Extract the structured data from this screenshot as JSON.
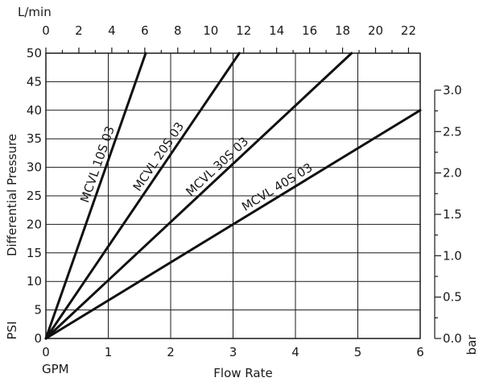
{
  "chart_data": {
    "type": "line",
    "grid": true,
    "bottom_axis": {
      "unit_label": "GPM",
      "title": "Flow Rate",
      "range": [
        0,
        6
      ],
      "ticks": [
        0,
        1,
        2,
        3,
        4,
        5,
        6
      ]
    },
    "top_axis": {
      "unit_label": "L/min",
      "range": [
        0,
        22.71
      ],
      "ticks": [
        0,
        2,
        4,
        6,
        8,
        10,
        12,
        14,
        16,
        18,
        20,
        22
      ]
    },
    "left_axis": {
      "title": "Differential Pressure",
      "unit_label": "PSI",
      "range": [
        0,
        50
      ],
      "ticks": [
        0,
        5,
        10,
        15,
        20,
        25,
        30,
        35,
        40,
        45,
        50
      ]
    },
    "right_axis": {
      "unit_label": "bar",
      "range": [
        0,
        3.447
      ],
      "ticks": [
        "0.0",
        "0.5",
        "1.0",
        "1.5",
        "2.0",
        "2.5",
        "3.0"
      ]
    },
    "series": [
      {
        "name": "MCVL 10S 03",
        "x": [
          0,
          1.6
        ],
        "y": [
          0,
          50
        ]
      },
      {
        "name": "MCVL 20S 03",
        "x": [
          0,
          3.1
        ],
        "y": [
          0,
          50
        ]
      },
      {
        "name": "MCVL 30S 03",
        "x": [
          0,
          4.9
        ],
        "y": [
          0,
          50
        ]
      },
      {
        "name": "MCVL 40S 03",
        "x": [
          0,
          6.0
        ],
        "y": [
          0,
          40
        ]
      }
    ]
  }
}
